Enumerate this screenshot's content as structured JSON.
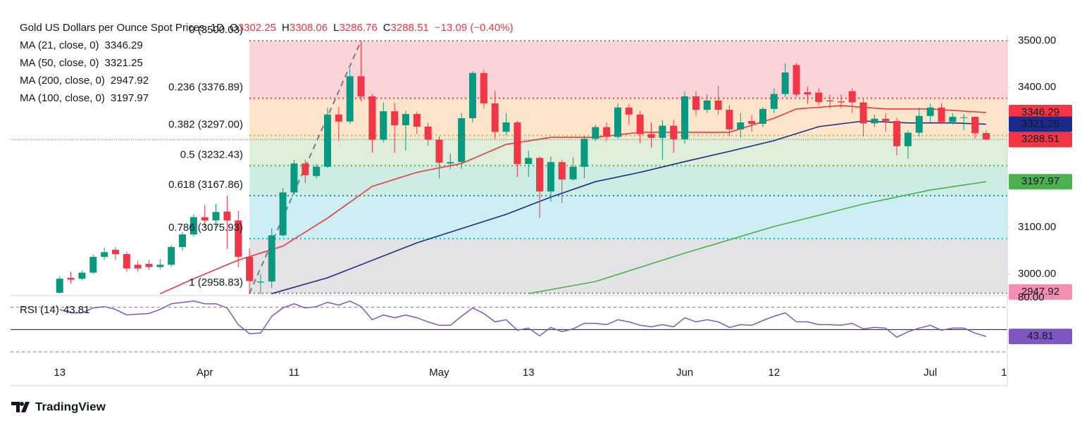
{
  "header": {
    "title": "Gold US Dollars per Ounce Spot Prices, 1D",
    "ohlc": [
      {
        "key": "O",
        "value": "3302.25"
      },
      {
        "key": "H",
        "value": "3308.06"
      },
      {
        "key": "L",
        "value": "3286.76"
      },
      {
        "key": "C",
        "value": "3288.51"
      }
    ],
    "change": "−13.09 (−0.40%)"
  },
  "chart_data": [
    {
      "type": "candlestick",
      "up_color": "#089981",
      "down_color": "#f23645",
      "xlim": [
        -4.4,
        84.9
      ],
      "xticks": [
        {
          "value": 0,
          "label": "13"
        },
        {
          "value": 13,
          "label": "Apr"
        },
        {
          "value": 21,
          "label": "11"
        },
        {
          "value": 34,
          "label": "May"
        },
        {
          "value": 42,
          "label": "13"
        },
        {
          "value": 56,
          "label": "Jun"
        },
        {
          "value": 64,
          "label": "12"
        },
        {
          "value": 78,
          "label": "Jul"
        },
        {
          "value": 84.6,
          "label": "1"
        }
      ],
      "ylim": [
        2957,
        3512
      ],
      "yticks": [
        {
          "value": 3500,
          "label": "3500.00"
        },
        {
          "value": 3400,
          "label": "3400.00"
        },
        {
          "value": 3100,
          "label": "3100.00"
        },
        {
          "value": 3000,
          "label": "3000.00"
        }
      ],
      "open": [
        2960,
        2992,
        2990,
        3003,
        3037,
        3052,
        3043,
        3020,
        3022,
        3015,
        3020,
        3058,
        3085,
        3122,
        3115,
        3134,
        3115,
        3037,
        2982,
        2984,
        3083,
        3175,
        3237,
        3210,
        3230,
        3342,
        3327,
        3424,
        3381,
        3288,
        3349,
        3319,
        3343,
        3316,
        3288,
        3237,
        3240,
        3334,
        3431,
        3366,
        3305,
        3325,
        3236,
        3249,
        3177,
        3240,
        3203,
        3230,
        3290,
        3315,
        3294,
        3357,
        3342,
        3300,
        3292,
        3318,
        3289,
        3381,
        3352,
        3372,
        3352,
        3310,
        3328,
        3322,
        3354,
        3386,
        3448,
        3390,
        3389,
        3372,
        3370,
        3392,
        3368,
        3323,
        3333,
        3328,
        3274,
        3303,
        3339,
        3357,
        3326,
        3336,
        3337,
        3302.25
      ],
      "high": [
        2995,
        3005,
        3008,
        3042,
        3057,
        3058,
        3048,
        3028,
        3030,
        3032,
        3062,
        3090,
        3128,
        3148,
        3150,
        3168,
        3136,
        3055,
        3000,
        3098,
        3185,
        3245,
        3245,
        3236,
        3357,
        3358,
        3440,
        3500,
        3386,
        3368,
        3367,
        3350,
        3348,
        3325,
        3295,
        3258,
        3345,
        3435,
        3438,
        3393,
        3345,
        3328,
        3265,
        3252,
        3252,
        3245,
        3250,
        3296,
        3320,
        3325,
        3366,
        3365,
        3350,
        3325,
        3330,
        3330,
        3392,
        3392,
        3385,
        3404,
        3362,
        3345,
        3340,
        3358,
        3398,
        3452,
        3452,
        3402,
        3398,
        3385,
        3385,
        3398,
        3375,
        3342,
        3345,
        3335,
        3308,
        3357,
        3365,
        3366,
        3345,
        3343,
        3338,
        3308.06
      ],
      "low": [
        2958,
        2980,
        2987,
        3000,
        3030,
        3030,
        3005,
        3005,
        3008,
        3010,
        3015,
        3050,
        3080,
        3100,
        3100,
        3054,
        3015,
        2957,
        2957,
        2970,
        3080,
        3170,
        3195,
        3205,
        3228,
        3285,
        3322,
        3370,
        3260,
        3282,
        3260,
        3265,
        3300,
        3275,
        3205,
        3225,
        3225,
        3325,
        3355,
        3290,
        3297,
        3208,
        3208,
        3120,
        3155,
        3152,
        3200,
        3205,
        3285,
        3285,
        3290,
        3320,
        3280,
        3271,
        3245,
        3260,
        3280,
        3340,
        3345,
        3342,
        3295,
        3293,
        3305,
        3315,
        3345,
        3380,
        3380,
        3365,
        3362,
        3355,
        3355,
        3345,
        3295,
        3315,
        3305,
        3255,
        3247,
        3295,
        3325,
        3322,
        3320,
        3308,
        3290,
        3286.76
      ],
      "close": [
        2990,
        2988,
        3003,
        3037,
        3047,
        3043,
        3012,
        3012,
        3015,
        3020,
        3058,
        3085,
        3122,
        3115,
        3133,
        3115,
        3037,
        2985,
        2984,
        3083,
        3175,
        3237,
        3212,
        3230,
        3342,
        3327,
        3424,
        3381,
        3288,
        3349,
        3319,
        3343,
        3316,
        3288,
        3239,
        3240,
        3334,
        3431,
        3366,
        3305,
        3325,
        3236,
        3249,
        3177,
        3240,
        3203,
        3230,
        3290,
        3315,
        3294,
        3357,
        3342,
        3300,
        3292,
        3318,
        3289,
        3381,
        3352,
        3372,
        3352,
        3310,
        3325,
        3322,
        3354,
        3386,
        3432,
        3385,
        3385,
        3369,
        3370,
        3368,
        3368,
        3323,
        3333,
        3328,
        3274,
        3303,
        3339,
        3357,
        3326,
        3337,
        3336,
        3302,
        3288.51
      ],
      "moving_averages": [
        {
          "name": "MA (21, close, 0)",
          "color": "#f23645",
          "x": [
            9,
            12,
            16,
            20,
            24,
            28,
            32,
            36,
            40,
            44,
            48,
            52,
            56,
            60,
            64,
            66,
            70,
            74,
            78,
            83
          ],
          "values": [
            2958,
            2990,
            3030,
            3060,
            3120,
            3188,
            3218,
            3237,
            3278,
            3293,
            3293,
            3304,
            3304,
            3304,
            3334,
            3354,
            3361,
            3354,
            3354,
            3346.29
          ]
        },
        {
          "name": "MA (50, close, 0)",
          "color": "#1c2a8a",
          "x": [
            19,
            24,
            32,
            40,
            44,
            48,
            52,
            56,
            60,
            64,
            68,
            72,
            76,
            80,
            83
          ],
          "values": [
            2958,
            2992,
            3067,
            3128,
            3165,
            3198,
            3218,
            3241,
            3263,
            3286,
            3316,
            3328,
            3324,
            3324,
            3321.25
          ]
        },
        {
          "name": "MA (200, close, 0)",
          "color": "#f48fb1",
          "x": [
            83
          ],
          "values": [
            2947.92
          ]
        },
        {
          "name": "MA (100, close, 0)",
          "color": "#4caf50",
          "x": [
            42,
            48,
            56,
            64,
            72,
            78,
            83
          ],
          "values": [
            2958,
            2984,
            3045,
            3102,
            3150,
            3180,
            3197.97
          ]
        }
      ],
      "fib_levels": [
        {
          "price": 3500.03,
          "label": "0 (3500.03)",
          "color": "#787b86",
          "fill": "#fad4d7"
        },
        {
          "price": 3376.89,
          "label": "0.236 (3376.89)",
          "color": "#f23645",
          "fill": "#fde5cc"
        },
        {
          "price": 3297.0,
          "label": "0.382 (3297.00)",
          "color": "#f7a21b",
          "fill": "#ddefd8"
        },
        {
          "price": 3232.43,
          "label": "0.5 (3232.43)",
          "color": "#4caf50",
          "fill": "#cdece4"
        },
        {
          "price": 3167.86,
          "label": "0.618 (3167.86)",
          "color": "#089981",
          "fill": "#cdeef3"
        },
        {
          "price": 3075.93,
          "label": "0.786 (3075.93)",
          "color": "#00bcd4",
          "fill": "#e3e3e5"
        },
        {
          "price": 2958.83,
          "label": "1 (2958.83)",
          "color": "#787b86"
        }
      ]
    },
    {
      "type": "line",
      "title": "RSI (14)",
      "color": "#7e57c2",
      "ylim": [
        25,
        80.5
      ],
      "yticks": [
        {
          "value": 80,
          "label": "80.00"
        }
      ],
      "levels": [
        {
          "value": 70,
          "style": "dashed"
        },
        {
          "value": 50,
          "style": "solid"
        },
        {
          "value": 30,
          "style": "dashed"
        }
      ],
      "values": [
        68.1,
        65,
        65,
        69.4,
        70.6,
        68.1,
        63.1,
        63.8,
        64.4,
        68.1,
        73.1,
        74.4,
        75.6,
        73.1,
        73.1,
        69.4,
        54.4,
        46.3,
        46.9,
        61.9,
        69.4,
        73.1,
        69.4,
        70.6,
        74.4,
        71.9,
        75.6,
        70.6,
        58.8,
        63.1,
        60.6,
        63.1,
        60.6,
        56.9,
        53.8,
        53.8,
        61.9,
        69.4,
        64.4,
        56.9,
        58.8,
        49.4,
        51.3,
        44.4,
        51.9,
        48.1,
        50.6,
        55.6,
        55.6,
        54.4,
        58.8,
        56.9,
        53.8,
        52.5,
        54.4,
        52.5,
        60.6,
        56.9,
        58.8,
        56.9,
        51.9,
        54.4,
        53.8,
        58.1,
        61.9,
        65,
        56.9,
        56.9,
        54.4,
        54.4,
        53.8,
        55.6,
        50.6,
        51.9,
        51.3,
        43.1,
        48.1,
        51.3,
        53.8,
        49.4,
        51.3,
        51.3,
        46.9,
        43.81
      ]
    }
  ],
  "footer": {
    "brand": "TradingView"
  }
}
